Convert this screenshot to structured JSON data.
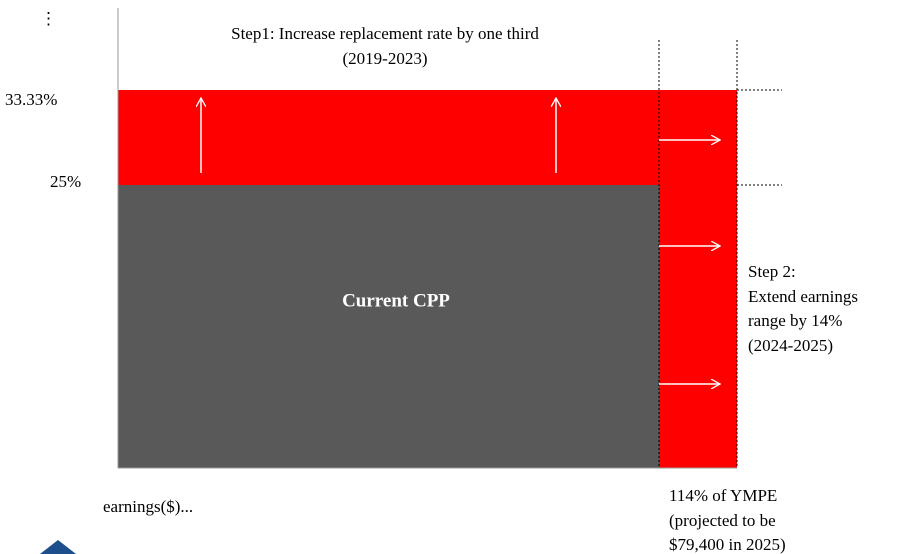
{
  "menu_icon": "⋮",
  "y_labels": [
    "33.33%",
    "25%"
  ],
  "step1": {
    "lines": [
      "Step1: Increase replacement rate by one third",
      "(2019-2023)"
    ]
  },
  "current_label": "Current CPP",
  "step2": {
    "lines": [
      "Step 2:",
      "Extend earnings",
      "range by 14%",
      "(2024-2025)"
    ]
  },
  "x_label": "earnings($)...",
  "ympe_note": {
    "lines": [
      "114% of YMPE",
      "(projected to be",
      "$79,400 in 2025)"
    ]
  }
}
